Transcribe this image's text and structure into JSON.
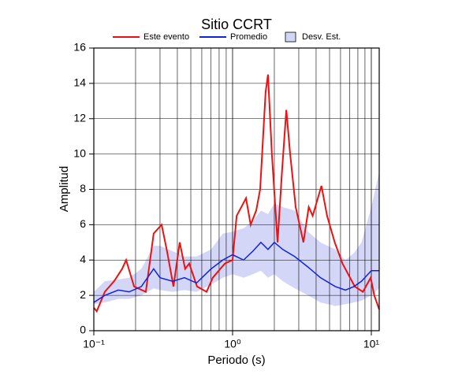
{
  "chart_data": {
    "type": "line",
    "title": "Sitio CCRT",
    "x_label": "Periodo (s)",
    "y_label": "Amplitud",
    "x_log": true,
    "grid": true,
    "legend": "top",
    "xlim": [
      0.1,
      11.4
    ],
    "ylim": [
      0,
      16
    ],
    "xticks": [
      {
        "value": 0.1,
        "label": "10⁻¹"
      },
      {
        "value": 1,
        "label": "10⁰"
      },
      {
        "value": 10,
        "label": "10¹"
      }
    ],
    "yticks": [
      0,
      2,
      4,
      6,
      8,
      10,
      12,
      14,
      16
    ],
    "series": [
      {
        "name": "Este evento",
        "color": "#ee1111",
        "x": [
          0.1,
          0.105,
          0.12,
          0.14,
          0.16,
          0.171,
          0.195,
          0.237,
          0.27,
          0.308,
          0.337,
          0.375,
          0.416,
          0.455,
          0.487,
          0.555,
          0.65,
          0.72,
          0.88,
          1.0,
          1.07,
          1.25,
          1.35,
          1.48,
          1.58,
          1.73,
          1.8,
          1.92,
          2.11,
          2.27,
          2.44,
          2.6,
          2.85,
          3.24,
          3.54,
          3.78,
          4.37,
          4.8,
          5.45,
          6.2,
          7.6,
          8.7,
          9.9,
          10.5,
          11.4
        ],
        "values": [
          1.3,
          1.1,
          2.2,
          2.8,
          3.5,
          4.0,
          2.5,
          2.2,
          5.5,
          6.0,
          4.5,
          2.5,
          5.0,
          3.5,
          3.8,
          2.5,
          2.2,
          3.0,
          3.8,
          4.0,
          6.5,
          7.5,
          6.0,
          6.8,
          8.0,
          13.5,
          14.5,
          10.0,
          5.0,
          9.0,
          12.5,
          10.0,
          7.0,
          5.0,
          7.0,
          6.5,
          8.2,
          6.5,
          5.0,
          3.8,
          2.5,
          2.2,
          3.0,
          2.0,
          1.2
        ]
      },
      {
        "name": "Promedio",
        "color": "#1122dd",
        "x": [
          0.1,
          0.12,
          0.15,
          0.18,
          0.22,
          0.27,
          0.3,
          0.37,
          0.45,
          0.55,
          0.7,
          0.85,
          1.0,
          1.2,
          1.4,
          1.6,
          1.8,
          2.0,
          2.3,
          2.8,
          3.5,
          4.3,
          5.5,
          6.5,
          7.5,
          8.5,
          10,
          11.4
        ],
        "values": [
          1.6,
          2.0,
          2.3,
          2.2,
          2.5,
          3.5,
          3.0,
          2.8,
          3.0,
          2.7,
          3.5,
          4.0,
          4.3,
          4.0,
          4.5,
          5.0,
          4.6,
          5.0,
          4.6,
          4.2,
          3.6,
          3.0,
          2.5,
          2.3,
          2.5,
          2.8,
          3.4,
          3.4
        ]
      }
    ],
    "band": {
      "name": "Desv. Est.",
      "color": "#d4d6f8",
      "x": [
        0.1,
        0.12,
        0.15,
        0.18,
        0.22,
        0.27,
        0.3,
        0.37,
        0.45,
        0.55,
        0.7,
        0.85,
        1.0,
        1.2,
        1.4,
        1.6,
        1.8,
        2.0,
        2.3,
        2.8,
        3.5,
        4.3,
        5.5,
        6.5,
        7.5,
        8.5,
        10,
        11.4
      ],
      "upper": [
        2.2,
        2.8,
        2.9,
        3.0,
        3.5,
        4.8,
        4.8,
        4.5,
        4.2,
        4.2,
        4.6,
        5.5,
        5.6,
        5.8,
        6.2,
        6.8,
        6.6,
        7.2,
        7.0,
        6.8,
        5.6,
        5.0,
        4.6,
        4.0,
        4.4,
        5.0,
        7.0,
        9.0
      ],
      "lower": [
        1.5,
        1.6,
        1.8,
        1.8,
        2.0,
        2.4,
        2.3,
        2.2,
        2.3,
        2.2,
        2.6,
        3.0,
        3.2,
        3.0,
        3.2,
        3.4,
        3.0,
        3.2,
        2.8,
        2.4,
        2.0,
        1.6,
        1.4,
        1.5,
        1.6,
        1.7,
        2.0,
        2.4
      ]
    }
  }
}
